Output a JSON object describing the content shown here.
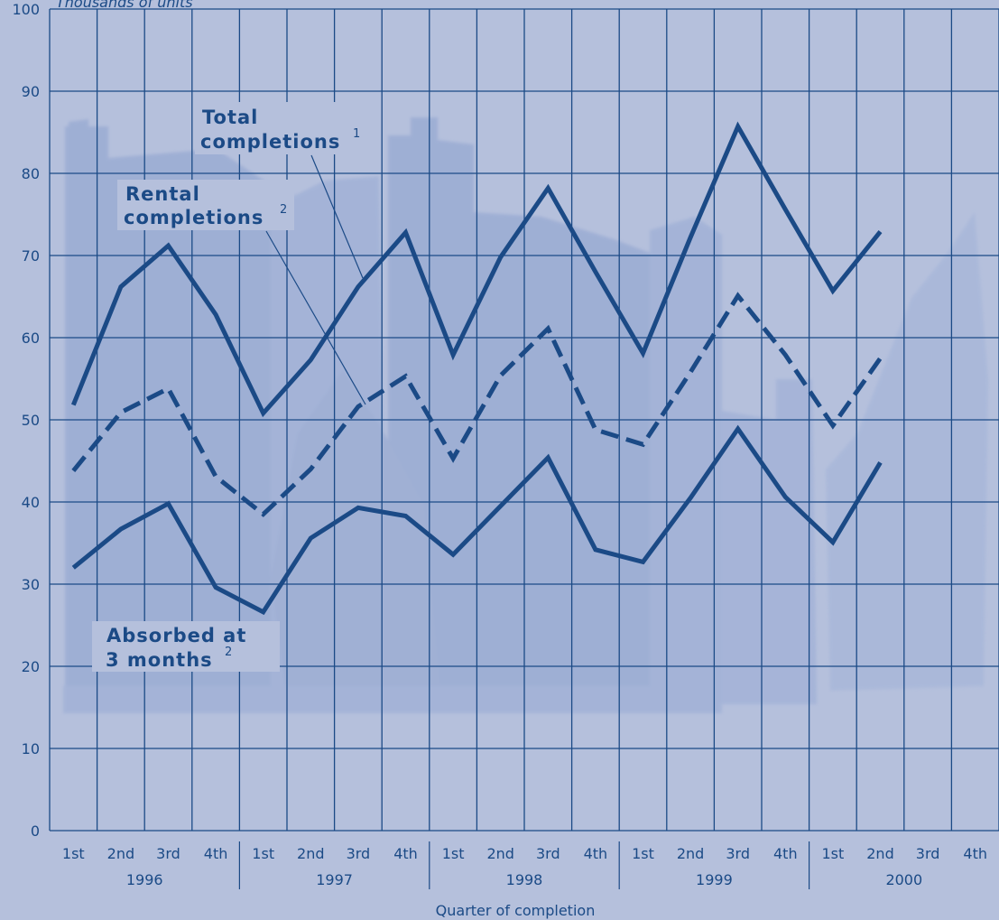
{
  "chart_data": {
    "type": "line",
    "ylabel": "Thousands of units",
    "xlabel": "Quarter of completion",
    "ylim": [
      0,
      100
    ],
    "yticks": [
      "0",
      "10",
      "20",
      "30",
      "40",
      "50",
      "60",
      "70",
      "80",
      "90",
      "100"
    ],
    "quarters": [
      "1st",
      "2nd",
      "3rd",
      "4th"
    ],
    "years": [
      "1996",
      "1997",
      "1998",
      "1999",
      "2000"
    ],
    "grid": true,
    "series": [
      {
        "name_lines": [
          "Total",
          "completions"
        ],
        "footnote": "1",
        "style": "solid",
        "values": [
          51.8,
          66.2,
          71.2,
          62.8,
          50.8,
          57.3,
          66.2,
          72.8,
          57.9,
          69.8,
          78.2,
          68.0,
          58.1,
          72.2,
          85.7,
          75.6,
          65.7,
          72.9,
          null,
          null
        ]
      },
      {
        "name_lines": [
          "Rental",
          "completions"
        ],
        "footnote": "2",
        "style": "dashed",
        "values": [
          43.8,
          50.9,
          53.8,
          43.1,
          38.5,
          44.0,
          51.6,
          55.3,
          45.3,
          55.4,
          61.1,
          48.8,
          47.0,
          55.8,
          65.1,
          57.9,
          49.3,
          57.5,
          null,
          null
        ]
      },
      {
        "name_lines": [
          "Absorbed at",
          "3 months"
        ],
        "footnote": "2",
        "style": "solid",
        "values": [
          32.0,
          36.7,
          39.8,
          29.6,
          26.6,
          35.6,
          39.3,
          38.3,
          33.6,
          39.5,
          45.4,
          34.2,
          32.7,
          40.5,
          48.9,
          40.6,
          35.1,
          44.8,
          null,
          null
        ]
      }
    ]
  }
}
